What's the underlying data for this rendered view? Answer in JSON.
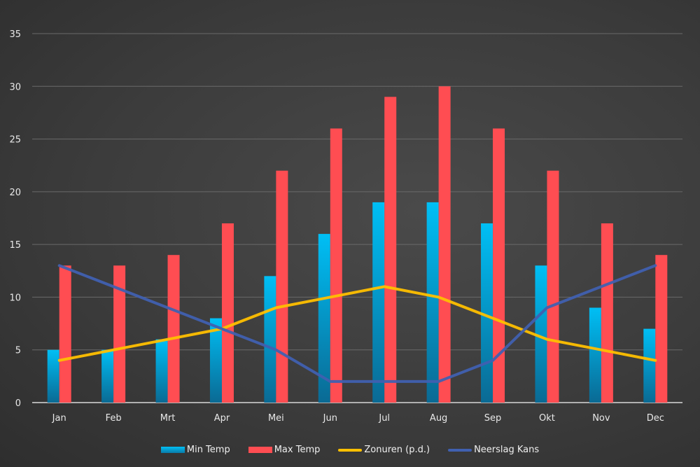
{
  "chart_data": {
    "type": "bar",
    "title": "",
    "xlabel": "",
    "ylabel": "",
    "ylim": [
      0,
      35
    ],
    "yticks": [
      0,
      5,
      10,
      15,
      20,
      25,
      30,
      35
    ],
    "grid": true,
    "legend_position": "bottom",
    "categories": [
      "Jan",
      "Feb",
      "Mrt",
      "Apr",
      "Mei",
      "Jun",
      "Jul",
      "Aug",
      "Sep",
      "Okt",
      "Nov",
      "Dec"
    ],
    "series": [
      {
        "name": "Min Temp",
        "kind": "bar",
        "color": "#00b4f0",
        "values": [
          5,
          5,
          6,
          8,
          12,
          16,
          19,
          19,
          17,
          13,
          9,
          7
        ]
      },
      {
        "name": "Max Temp",
        "kind": "bar",
        "color": "#ff4d52",
        "values": [
          13,
          13,
          14,
          17,
          22,
          26,
          29,
          30,
          26,
          22,
          17,
          14
        ]
      },
      {
        "name": "Zonuren (p.d.)",
        "kind": "line",
        "color": "#ffc000",
        "values": [
          4,
          5,
          6,
          7,
          9,
          10,
          11,
          10,
          8,
          6,
          5,
          4
        ]
      },
      {
        "name": "Neerslag Kans",
        "kind": "line",
        "color": "#4060b0",
        "values": [
          13,
          11,
          9,
          7,
          5,
          2,
          2,
          2,
          4,
          9,
          11,
          13
        ]
      }
    ]
  }
}
